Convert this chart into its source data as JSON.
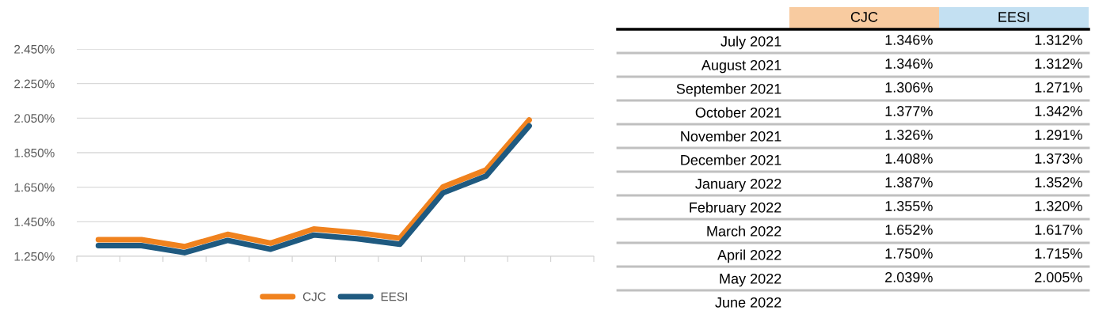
{
  "chart_data": [
    {
      "type": "line",
      "categories": [
        null,
        null,
        null,
        null,
        null,
        null,
        null,
        null,
        null,
        null,
        null,
        null
      ],
      "series": [
        {
          "name": "CJC",
          "color": "#f0821e",
          "values": [
            1.346,
            1.346,
            1.306,
            1.377,
            1.326,
            1.408,
            1.387,
            1.355,
            1.652,
            1.75,
            2.039,
            null
          ]
        },
        {
          "name": "EESI",
          "color": "#1f5a80",
          "values": [
            1.312,
            1.312,
            1.271,
            1.342,
            1.291,
            1.373,
            1.352,
            1.32,
            1.617,
            1.715,
            2.005,
            null
          ]
        }
      ],
      "ylim": [
        1.25,
        2.45
      ],
      "yticks": [
        {
          "value": 1.25,
          "label": "1.250%"
        },
        {
          "value": 1.45,
          "label": "1.450%"
        },
        {
          "value": 1.65,
          "label": "1.650%"
        },
        {
          "value": 1.85,
          "label": "1.850%"
        },
        {
          "value": 2.05,
          "label": "2.050%"
        },
        {
          "value": 2.25,
          "label": "2.250%"
        },
        {
          "value": 2.45,
          "label": "2.450%"
        }
      ],
      "grid": "y",
      "legend": "bottom",
      "marker": "none",
      "line_style": "solid",
      "tick_labels": "y"
    },
    {
      "type": "heatmap",
      "categories": [
        "CJC",
        "EESI"
      ],
      "y_categories": [
        "July 2021",
        "August 2021",
        "September 2021",
        "October 2021",
        "November 2021",
        "December 2021",
        "January 2022",
        "February 2022",
        "March 2022",
        "April 2022",
        "May 2022",
        "June 2022"
      ],
      "cells": [
        [
          1.346,
          1.312
        ],
        [
          1.346,
          1.312
        ],
        [
          1.306,
          1.271
        ],
        [
          1.377,
          1.342
        ],
        [
          1.326,
          1.291
        ],
        [
          1.408,
          1.373
        ],
        [
          1.387,
          1.352
        ],
        [
          1.355,
          1.32
        ],
        [
          1.652,
          1.617
        ],
        [
          1.75,
          1.715
        ],
        [
          2.039,
          2.005
        ],
        [
          null,
          null
        ]
      ],
      "cell_labels": [
        [
          "1.346%",
          "1.312%"
        ],
        [
          "1.346%",
          "1.312%"
        ],
        [
          "1.306%",
          "1.271%"
        ],
        [
          "1.377%",
          "1.342%"
        ],
        [
          "1.326%",
          "1.291%"
        ],
        [
          "1.408%",
          "1.373%"
        ],
        [
          "1.387%",
          "1.352%"
        ],
        [
          "1.355%",
          "1.320%"
        ],
        [
          "1.652%",
          "1.617%"
        ],
        [
          "1.750%",
          "1.715%"
        ],
        [
          "2.039%",
          "2.005%"
        ],
        [
          null,
          null
        ]
      ]
    }
  ]
}
